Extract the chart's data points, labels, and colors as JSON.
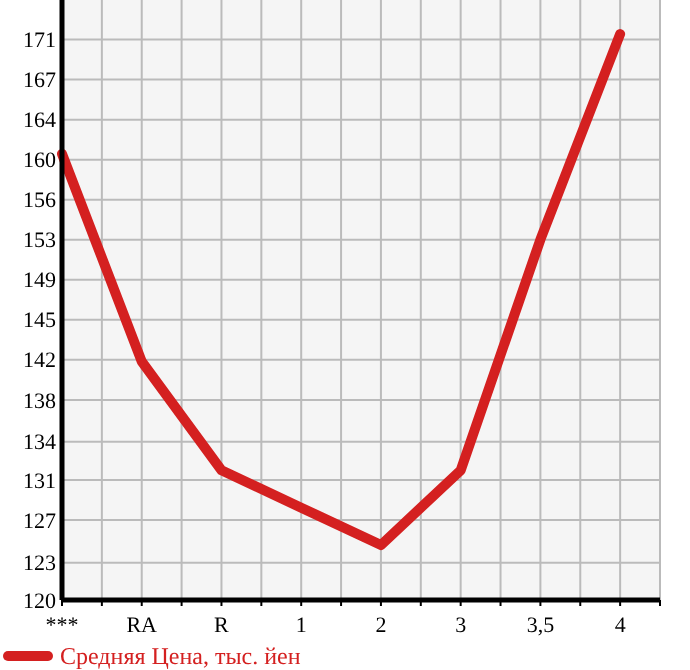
{
  "chart_data": {
    "type": "line",
    "categories": [
      "***",
      "RA",
      "R",
      "1",
      "2",
      "3",
      "3,5",
      "4"
    ],
    "series": [
      {
        "name": "Средняя Цена, тыс. йен",
        "color": "#d42020",
        "values": [
          160.6,
          141.7,
          131.8,
          128.4,
          125.0,
          131.8,
          152.8,
          171.5
        ]
      }
    ],
    "ylim": [
      120,
      174.6
    ],
    "yticks": [
      120,
      {
        "value": 123.4,
        "label": "123"
      },
      {
        "value": 127.29,
        "label": "127"
      },
      {
        "value": 130.93,
        "label": "131"
      },
      {
        "value": 134.4,
        "label": "134"
      },
      {
        "value": 138.21,
        "label": "138"
      },
      {
        "value": 141.86,
        "label": "142"
      },
      {
        "value": 145.5,
        "label": "145"
      },
      {
        "value": 149.14,
        "label": "149"
      },
      {
        "value": 152.79,
        "label": "153"
      },
      {
        "value": 156.43,
        "label": "156"
      },
      {
        "value": 160.07,
        "label": "160"
      },
      {
        "value": 163.71,
        "label": "164"
      },
      {
        "value": 167.36,
        "label": "167"
      },
      171
    ],
    "grid": true,
    "legend": "bottom",
    "marker": "none",
    "line_style": "solid"
  }
}
